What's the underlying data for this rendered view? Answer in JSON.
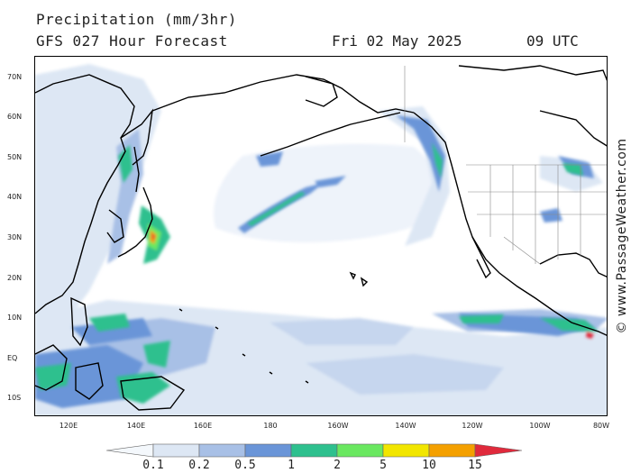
{
  "header": {
    "title": "Precipitation (mm/3hr)",
    "subtitle": "GFS 027 Hour Forecast",
    "date": "Fri 02 May 2025",
    "time": "09 UTC"
  },
  "credit": "© www.PassageWeather.com",
  "axes": {
    "lat_labels": [
      "70N",
      "60N",
      "50N",
      "40N",
      "30N",
      "20N",
      "10N",
      "EQ",
      "10S"
    ],
    "lon_labels": [
      "120E",
      "140E",
      "160E",
      "180",
      "160W",
      "140W",
      "120W",
      "100W",
      "80W"
    ]
  },
  "legend": {
    "labels": [
      "0.1",
      "0.2",
      "0.5",
      "1",
      "2",
      "5",
      "10",
      "15"
    ],
    "colors": [
      "#f4f8fc",
      "#dde7f4",
      "#a8c0e6",
      "#6a95d8",
      "#2ec08e",
      "#6ae860",
      "#f2e600",
      "#f4a000",
      "#e02a3c"
    ]
  },
  "map_colors": {
    "ocean": "#ffffff",
    "coast": "#000000",
    "border": "#888888"
  }
}
